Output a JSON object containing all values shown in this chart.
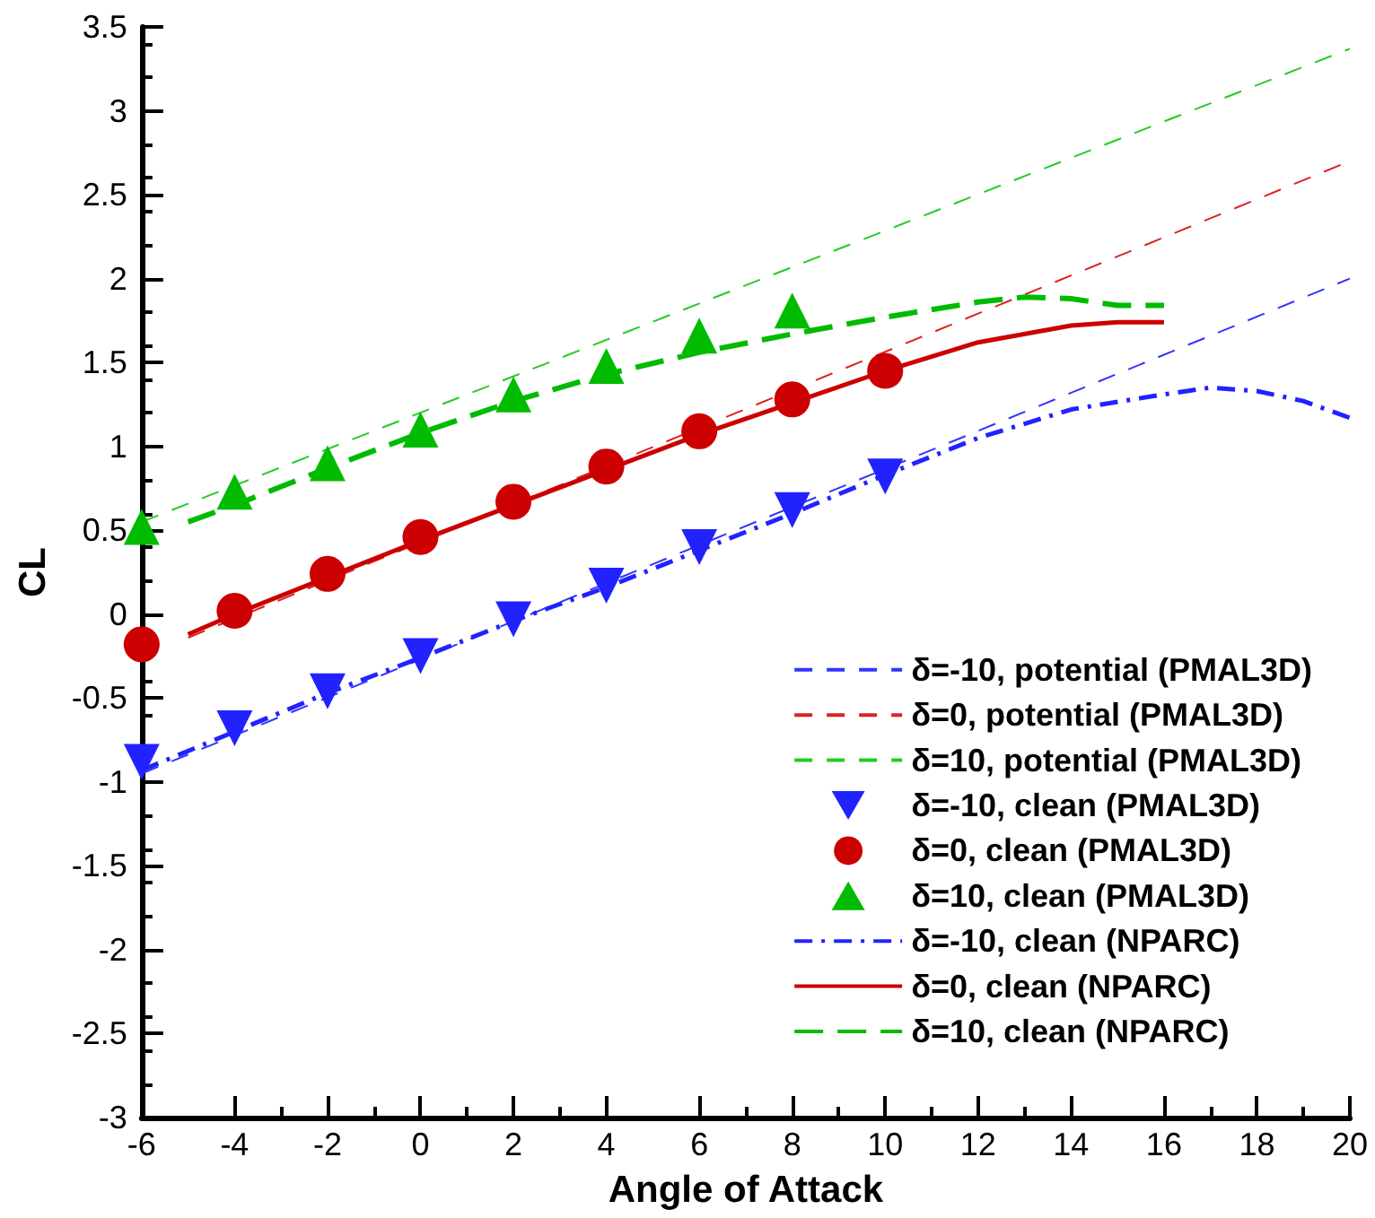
{
  "chart_data": {
    "type": "line",
    "xlabel": "Angle of Attack",
    "ylabel": "CL",
    "xlim": [
      -6,
      20
    ],
    "xticks": [
      -6,
      -4,
      -2,
      0,
      2,
      4,
      6,
      8,
      10,
      12,
      14,
      16,
      18,
      20
    ],
    "ylim": [
      -3,
      3.5
    ],
    "yticks": [
      -3,
      -2.5,
      -2,
      -1.5,
      -1,
      -0.5,
      0,
      0.5,
      1,
      1.5,
      2,
      2.5,
      3,
      3.5
    ],
    "grid": false,
    "legend": "bottom right",
    "series": [
      {
        "name": "δ=-10, potential (PMAL3D)",
        "color": "#3333ff",
        "line_style": "dashed",
        "marker": "none",
        "x": [
          -6,
          20
        ],
        "values": [
          -0.95,
          2.0
        ]
      },
      {
        "name": "δ=0, potential (PMAL3D)",
        "color": "#dd2222",
        "line_style": "dashed",
        "marker": "none",
        "x": [
          -5,
          20
        ],
        "values": [
          -0.14,
          2.7
        ]
      },
      {
        "name": "δ=10, potential (PMAL3D)",
        "color": "#22cc22",
        "line_style": "dashed",
        "marker": "none",
        "x": [
          -6,
          20
        ],
        "values": [
          0.55,
          3.37
        ]
      },
      {
        "name": "δ=-10, clean (PMAL3D)",
        "type": "scatter",
        "color": "#2222ff",
        "marker": "triangle-down",
        "x": [
          -6,
          -4,
          -2,
          0,
          2,
          4,
          6,
          8,
          10
        ],
        "values": [
          -0.88,
          -0.68,
          -0.46,
          -0.25,
          -0.03,
          0.17,
          0.4,
          0.62,
          0.82
        ]
      },
      {
        "name": "δ=0, clean (PMAL3D)",
        "type": "scatter",
        "color": "#cc0000",
        "marker": "circle",
        "x": [
          -6,
          -4,
          -2,
          0,
          2,
          4,
          6,
          8,
          10
        ],
        "values": [
          -0.18,
          0.02,
          0.24,
          0.46,
          0.67,
          0.88,
          1.09,
          1.28,
          1.45
        ]
      },
      {
        "name": "δ=10, clean (PMAL3D)",
        "type": "scatter",
        "color": "#00bb00",
        "marker": "triangle",
        "x": [
          -6,
          -4,
          -2,
          0,
          2,
          4,
          6,
          8
        ],
        "values": [
          0.52,
          0.73,
          0.9,
          1.1,
          1.31,
          1.48,
          1.66,
          1.81
        ]
      },
      {
        "name": "δ=-10, clean (NPARC)",
        "color": "#2222ff",
        "line_style": "dashdot",
        "marker": "none",
        "x": [
          -6,
          -4,
          -2,
          0,
          2,
          4,
          6,
          8,
          10,
          12,
          14,
          16,
          17,
          18,
          19,
          20
        ],
        "values": [
          -0.93,
          -0.7,
          -0.47,
          -0.26,
          -0.04,
          0.16,
          0.38,
          0.6,
          0.83,
          1.05,
          1.22,
          1.31,
          1.35,
          1.33,
          1.27,
          1.17
        ]
      },
      {
        "name": "δ=0, clean (NPARC)",
        "color": "#cc0000",
        "line_style": "solid",
        "marker": "none",
        "x": [
          -5,
          -4,
          -2,
          0,
          2,
          4,
          6,
          8,
          10,
          12,
          14,
          15,
          16
        ],
        "values": [
          -0.12,
          0.0,
          0.22,
          0.44,
          0.65,
          0.86,
          1.07,
          1.26,
          1.45,
          1.62,
          1.72,
          1.74,
          1.74
        ]
      },
      {
        "name": "δ=10, clean (NPARC)",
        "color": "#00bb00",
        "line_style": "longdash",
        "marker": "none",
        "x": [
          -5,
          -4,
          -2,
          0,
          2,
          4,
          6,
          8,
          10,
          12,
          13,
          14,
          15,
          16
        ],
        "values": [
          0.55,
          0.65,
          0.87,
          1.08,
          1.27,
          1.43,
          1.56,
          1.67,
          1.77,
          1.86,
          1.89,
          1.88,
          1.84,
          1.84
        ]
      }
    ]
  }
}
